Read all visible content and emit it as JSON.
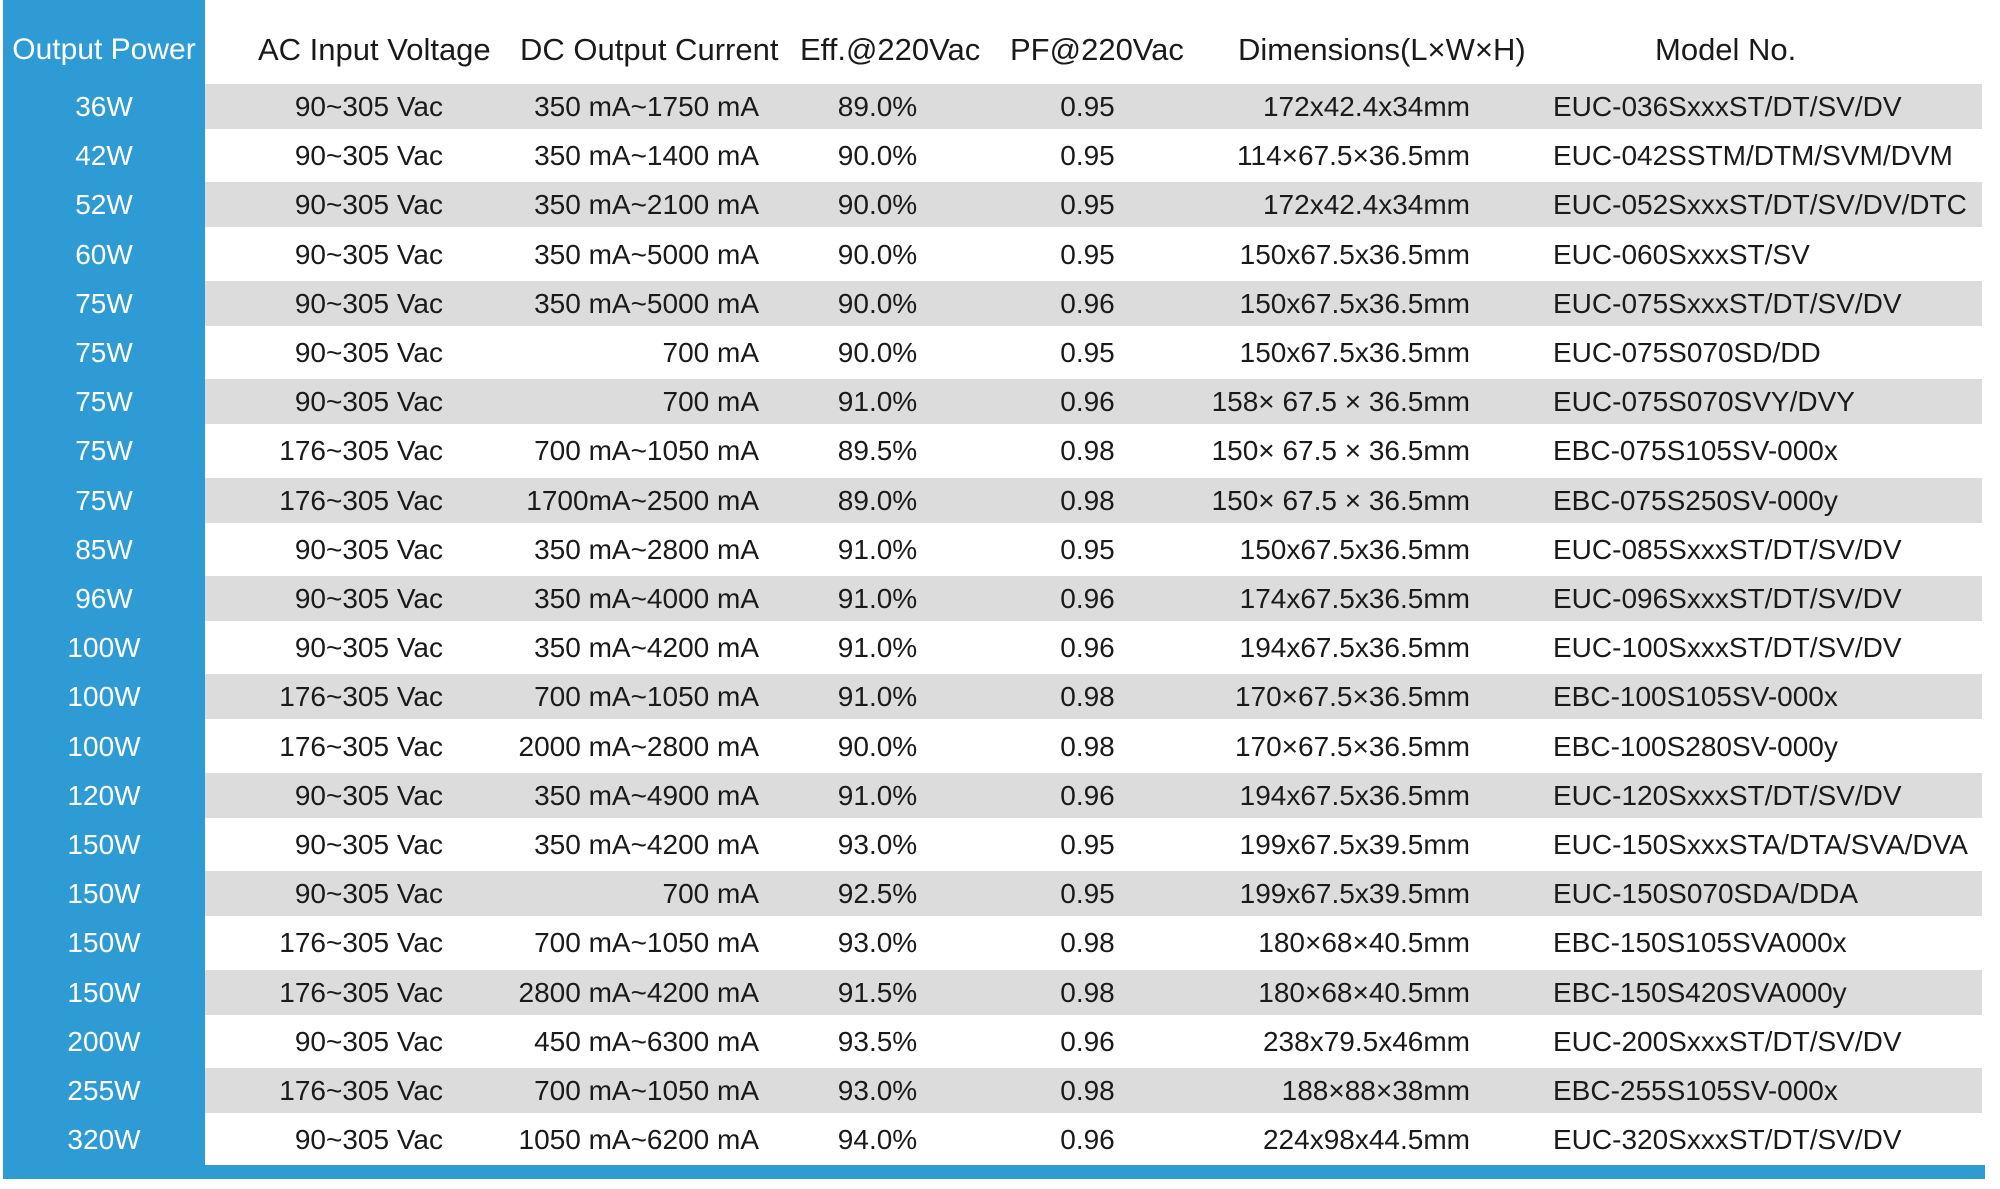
{
  "headers": [
    "Output Power",
    "AC Input Voltage",
    "DC Output Current",
    "Eff.@220Vac",
    "PF@220Vac",
    "Dimensions(L×W×H)",
    "Model No."
  ],
  "rows": [
    [
      "36W",
      "90~305 Vac",
      "350 mA~1750 mA",
      "89.0%",
      "0.95",
      "172x42.4x34mm",
      "EUC-036SxxxST/DT/SV/DV"
    ],
    [
      "42W",
      "90~305 Vac",
      "350 mA~1400 mA",
      "90.0%",
      "0.95",
      "114×67.5×36.5mm",
      "EUC-042SSTM/DTM/SVM/DVM"
    ],
    [
      "52W",
      "90~305 Vac",
      "350 mA~2100 mA",
      "90.0%",
      "0.95",
      "172x42.4x34mm",
      "EUC-052SxxxST/DT/SV/DV/DTC"
    ],
    [
      "60W",
      "90~305 Vac",
      "350 mA~5000 mA",
      "90.0%",
      "0.95",
      "150x67.5x36.5mm",
      "EUC-060SxxxST/SV"
    ],
    [
      "75W",
      "90~305 Vac",
      "350 mA~5000 mA",
      "90.0%",
      "0.96",
      "150x67.5x36.5mm",
      "EUC-075SxxxST/DT/SV/DV"
    ],
    [
      "75W",
      "90~305 Vac",
      "700 mA",
      "90.0%",
      "0.95",
      "150x67.5x36.5mm",
      "EUC-075S070SD/DD"
    ],
    [
      "75W",
      "90~305 Vac",
      "700 mA",
      "91.0%",
      "0.96",
      "158× 67.5 × 36.5mm",
      "EUC-075S070SVY/DVY"
    ],
    [
      "75W",
      "176~305 Vac",
      "700 mA~1050 mA",
      "89.5%",
      "0.98",
      "150× 67.5 × 36.5mm",
      "EBC-075S105SV-000x"
    ],
    [
      "75W",
      "176~305 Vac",
      "1700mA~2500 mA",
      "89.0%",
      "0.98",
      "150× 67.5 × 36.5mm",
      "EBC-075S250SV-000y"
    ],
    [
      "85W",
      "90~305 Vac",
      "350 mA~2800 mA",
      "91.0%",
      "0.95",
      "150x67.5x36.5mm",
      "EUC-085SxxxST/DT/SV/DV"
    ],
    [
      "96W",
      "90~305 Vac",
      "350 mA~4000 mA",
      "91.0%",
      "0.96",
      "174x67.5x36.5mm",
      "EUC-096SxxxST/DT/SV/DV"
    ],
    [
      "100W",
      "90~305 Vac",
      "350 mA~4200 mA",
      "91.0%",
      "0.96",
      "194x67.5x36.5mm",
      "EUC-100SxxxST/DT/SV/DV"
    ],
    [
      "100W",
      "176~305 Vac",
      "700 mA~1050 mA",
      "91.0%",
      "0.98",
      "170×67.5×36.5mm",
      "EBC-100S105SV-000x"
    ],
    [
      "100W",
      "176~305 Vac",
      "2000 mA~2800 mA",
      "90.0%",
      "0.98",
      "170×67.5×36.5mm",
      "EBC-100S280SV-000y"
    ],
    [
      "120W",
      "90~305 Vac",
      "350 mA~4900 mA",
      "91.0%",
      "0.96",
      "194x67.5x36.5mm",
      "EUC-120SxxxST/DT/SV/DV"
    ],
    [
      "150W",
      "90~305 Vac",
      "350 mA~4200 mA",
      "93.0%",
      "0.95",
      "199x67.5x39.5mm",
      "EUC-150SxxxSTA/DTA/SVA/DVA"
    ],
    [
      "150W",
      "90~305 Vac",
      "700 mA",
      "92.5%",
      "0.95",
      "199x67.5x39.5mm",
      "EUC-150S070SDA/DDA"
    ],
    [
      "150W",
      "176~305 Vac",
      "700 mA~1050 mA",
      "93.0%",
      "0.98",
      "180×68×40.5mm",
      "EBC-150S105SVA000x"
    ],
    [
      "150W",
      "176~305 Vac",
      "2800 mA~4200 mA",
      "91.5%",
      "0.98",
      "180×68×40.5mm",
      "EBC-150S420SVA000y"
    ],
    [
      "200W",
      "90~305 Vac",
      "450 mA~6300 mA",
      "93.5%",
      "0.96",
      "238x79.5x46mm",
      "EUC-200SxxxST/DT/SV/DV"
    ],
    [
      "255W",
      "176~305 Vac",
      "700 mA~1050 mA",
      "93.0%",
      "0.98",
      "188×88×38mm",
      "EBC-255S105SV-000x"
    ],
    [
      "320W",
      "90~305 Vac",
      "1050 mA~6200 mA",
      "94.0%",
      "0.96",
      "224x98x44.5mm",
      "EUC-320SxxxST/DT/SV/DV"
    ]
  ],
  "colors": {
    "accent_blue": "#2f9bd5",
    "stripe_gray": "#dcdcdc",
    "text": "#1a1a1a",
    "header_power_text": "#ffffff"
  }
}
